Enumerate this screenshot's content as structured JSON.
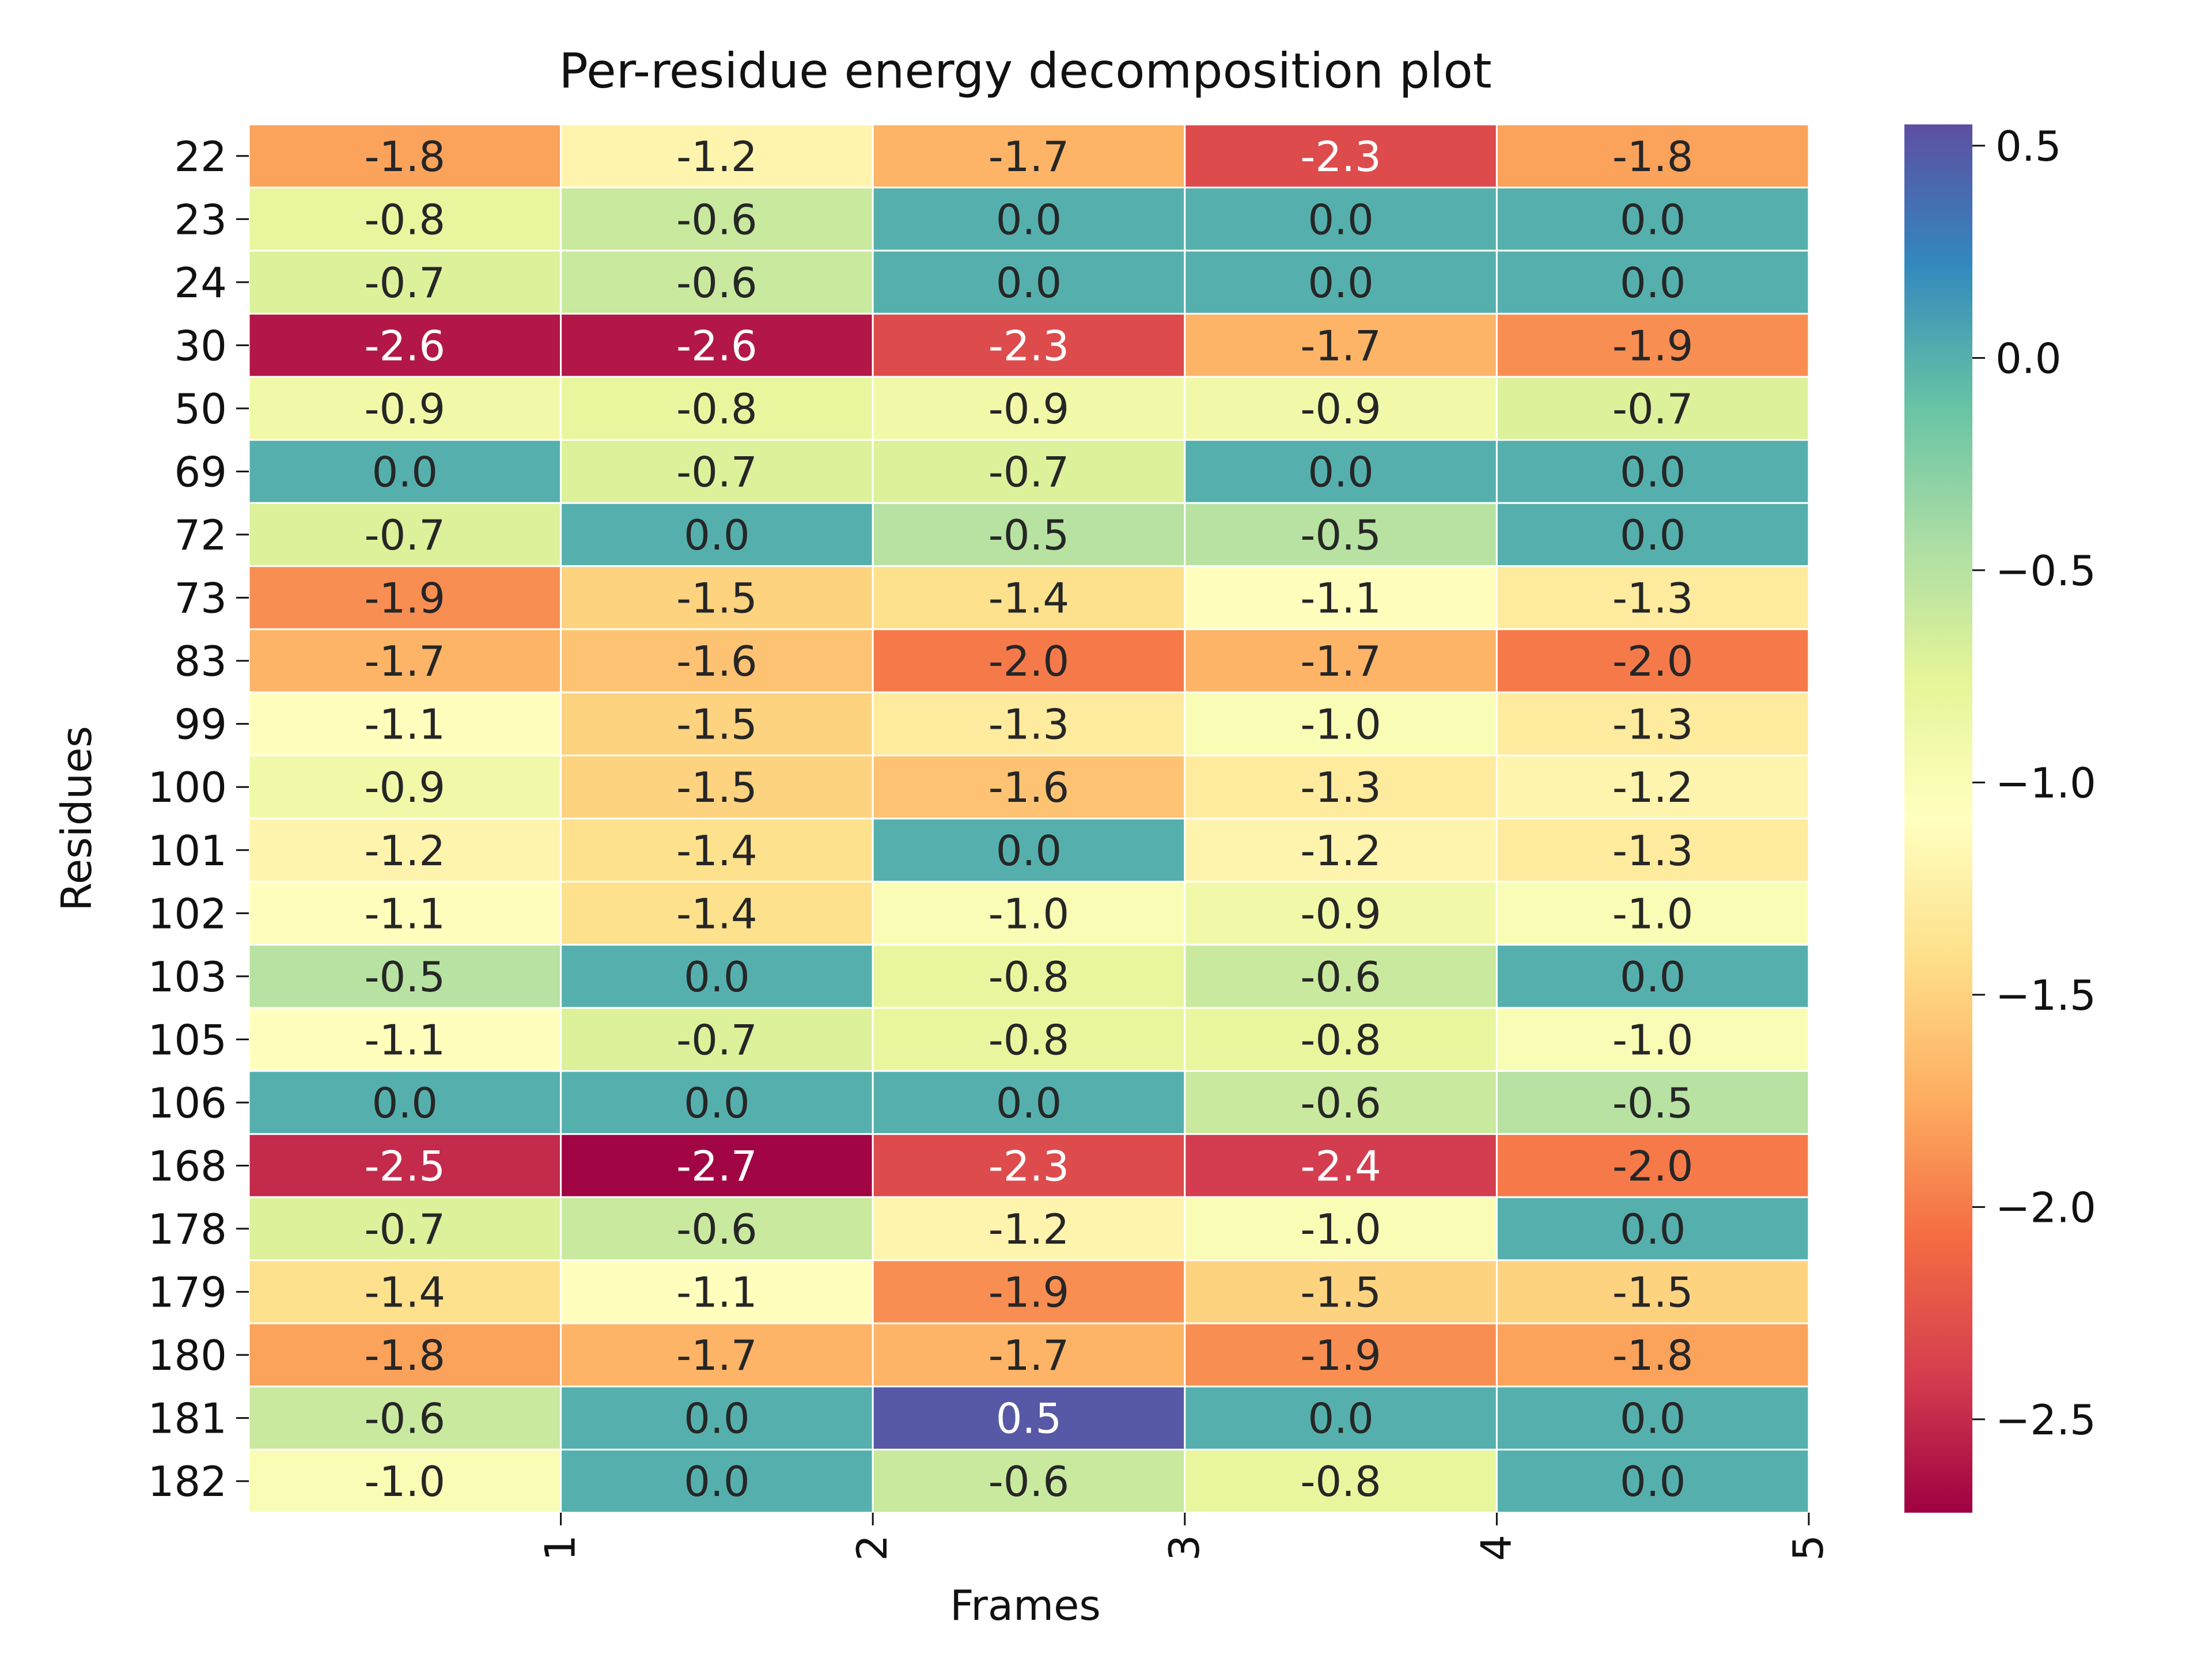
{
  "chart_data": {
    "type": "heatmap",
    "title": "Per-residue energy decomposition plot",
    "xlabel": "Frames",
    "ylabel": "Residues",
    "x_tick_labels": [
      "1",
      "2",
      "3",
      "4",
      "5"
    ],
    "rows": [
      "22",
      "23",
      "24",
      "30",
      "50",
      "69",
      "72",
      "73",
      "83",
      "99",
      "100",
      "101",
      "102",
      "103",
      "105",
      "106",
      "168",
      "178",
      "179",
      "180",
      "181",
      "182"
    ],
    "values": [
      [
        -1.8,
        -1.2,
        -1.7,
        -2.3,
        -1.8
      ],
      [
        -0.8,
        -0.6,
        0.0,
        0.0,
        0.0
      ],
      [
        -0.7,
        -0.6,
        0.0,
        0.0,
        0.0
      ],
      [
        -2.6,
        -2.6,
        -2.3,
        -1.7,
        -1.9
      ],
      [
        -0.9,
        -0.8,
        -0.9,
        -0.9,
        -0.7
      ],
      [
        0.0,
        -0.7,
        -0.7,
        0.0,
        0.0
      ],
      [
        -0.7,
        0.0,
        -0.5,
        -0.5,
        0.0
      ],
      [
        -1.9,
        -1.5,
        -1.4,
        -1.1,
        -1.3
      ],
      [
        -1.7,
        -1.6,
        -2.0,
        -1.7,
        -2.0
      ],
      [
        -1.1,
        -1.5,
        -1.3,
        -1.0,
        -1.3
      ],
      [
        -0.9,
        -1.5,
        -1.6,
        -1.3,
        -1.2
      ],
      [
        -1.2,
        -1.4,
        0.0,
        -1.2,
        -1.3
      ],
      [
        -1.1,
        -1.4,
        -1.0,
        -0.9,
        -1.0
      ],
      [
        -0.5,
        0.0,
        -0.8,
        -0.6,
        0.0
      ],
      [
        -1.1,
        -0.7,
        -0.8,
        -0.8,
        -1.0
      ],
      [
        0.0,
        0.0,
        0.0,
        -0.6,
        -0.5
      ],
      [
        -2.5,
        -2.7,
        -2.3,
        -2.4,
        -2.0
      ],
      [
        -0.7,
        -0.6,
        -1.2,
        -1.0,
        0.0
      ],
      [
        -1.4,
        -1.1,
        -1.9,
        -1.5,
        -1.5
      ],
      [
        -1.8,
        -1.7,
        -1.7,
        -1.9,
        -1.8
      ],
      [
        -0.6,
        0.0,
        0.5,
        0.0,
        0.0
      ],
      [
        -1.0,
        0.0,
        -0.6,
        -0.8,
        0.0
      ]
    ],
    "colormap": "Spectral",
    "vmin": -2.72,
    "vmax": 0.55,
    "colorbar_ticks": [
      0.5,
      0.0,
      -0.5,
      -1.0,
      -1.5,
      -2.0,
      -2.5
    ],
    "colorbar_tick_labels": [
      "0.5",
      "0.0",
      "−0.5",
      "−1.0",
      "−1.5",
      "−2.0",
      "−2.5"
    ],
    "grid": false,
    "legend": "colorbar-right"
  }
}
